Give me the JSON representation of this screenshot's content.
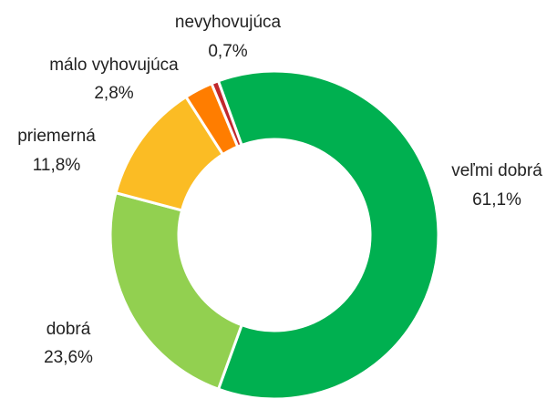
{
  "chart_data": {
    "type": "donut",
    "categories": [
      "veľmi dobrá",
      "dobrá",
      "priemerná",
      "málo vyhovujúca",
      "nevyhovujúca"
    ],
    "values": [
      61.1,
      23.6,
      11.8,
      2.8,
      0.7
    ],
    "value_labels": [
      "61,1%",
      "23,6%",
      "11,8%",
      "2,8%",
      "0,7%"
    ],
    "colors": [
      "#00b050",
      "#92d050",
      "#fbbc24",
      "#ff7d00",
      "#c0282d"
    ]
  }
}
